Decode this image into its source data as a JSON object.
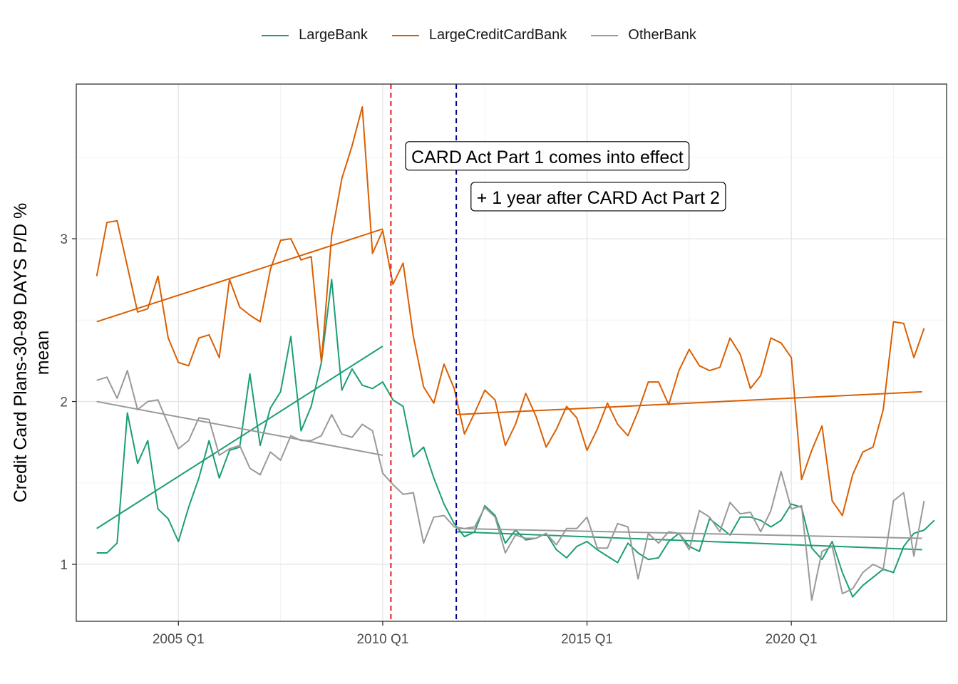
{
  "chart_data": {
    "type": "line",
    "ylabel": "Credit Card Plans-30-89 DAYS P/D %\nmean",
    "ylabel_line1": "Credit Card Plans-30-89 DAYS P/D %",
    "ylabel_line2": "mean",
    "xlabel": "",
    "x_ticks": [
      "2005 Q1",
      "2010 Q1",
      "2015 Q1",
      "2020 Q1"
    ],
    "y_ticks": [
      1,
      2,
      3
    ],
    "xlim": [
      2002.5,
      2023.8
    ],
    "ylim": [
      0.65,
      3.95
    ],
    "grid": true,
    "legend_position": "top",
    "vlines": [
      {
        "x": 2010.2,
        "color": "#e41a1c",
        "style": "dashed"
      },
      {
        "x": 2011.8,
        "color": "#00008b",
        "style": "dashed"
      }
    ],
    "annotations": [
      {
        "text": "CARD Act Part 1 comes into effect",
        "x": 2010.7,
        "y": 3.5
      },
      {
        "text": "+ 1 year after CARD Act Part 2",
        "x": 2012.3,
        "y": 3.25
      }
    ],
    "series": [
      {
        "name": "LargeBank",
        "color": "#1b9e77",
        "x_start": 2003.0,
        "step": 0.25,
        "values": [
          1.07,
          1.07,
          1.13,
          1.93,
          1.62,
          1.76,
          1.34,
          1.28,
          1.14,
          1.35,
          1.53,
          1.76,
          1.53,
          1.7,
          1.72,
          2.17,
          1.73,
          1.96,
          2.06,
          2.4,
          1.82,
          1.97,
          2.24,
          2.75,
          2.07,
          2.2,
          2.1,
          2.08,
          2.12,
          2.01,
          1.97,
          1.66,
          1.72,
          1.53,
          1.37,
          1.25,
          1.17,
          1.2,
          1.36,
          1.3,
          1.13,
          1.21,
          1.15,
          1.16,
          1.19,
          1.09,
          1.04,
          1.11,
          1.14,
          1.09,
          1.05,
          1.01,
          1.13,
          1.07,
          1.03,
          1.04,
          1.14,
          1.19,
          1.11,
          1.08,
          1.28,
          1.23,
          1.18,
          1.29,
          1.29,
          1.27,
          1.23,
          1.27,
          1.37,
          1.35,
          1.1,
          1.03,
          1.14,
          0.95,
          0.8,
          0.87,
          0.92,
          0.97,
          0.95,
          1.11,
          1.19,
          1.21,
          1.27
        ],
        "trend": [
          {
            "x": [
              2003.0,
              2010.0
            ],
            "y": [
              1.22,
              2.34
            ]
          },
          {
            "x": [
              2011.8,
              2023.2
            ],
            "y": [
              1.2,
              1.09
            ]
          }
        ]
      },
      {
        "name": "LargeCreditCardBank",
        "color": "#d95f02",
        "x_start": 2003.0,
        "step": 0.25,
        "values": [
          2.77,
          3.1,
          3.11,
          2.83,
          2.55,
          2.57,
          2.77,
          2.39,
          2.24,
          2.22,
          2.39,
          2.41,
          2.27,
          2.75,
          2.58,
          2.53,
          2.49,
          2.81,
          2.99,
          3.0,
          2.87,
          2.89,
          2.24,
          3.02,
          3.37,
          3.57,
          3.81,
          2.91,
          3.05,
          2.72,
          2.85,
          2.4,
          2.09,
          1.99,
          2.23,
          2.08,
          1.8,
          1.93,
          2.07,
          2.01,
          1.73,
          1.86,
          2.05,
          1.91,
          1.72,
          1.83,
          1.97,
          1.9,
          1.7,
          1.83,
          1.99,
          1.86,
          1.79,
          1.94,
          2.12,
          2.12,
          1.98,
          2.19,
          2.32,
          2.22,
          2.19,
          2.21,
          2.39,
          2.29,
          2.08,
          2.16,
          2.39,
          2.36,
          2.27,
          1.52,
          1.7,
          1.85,
          1.39,
          1.3,
          1.55,
          1.69,
          1.72,
          1.95,
          2.49,
          2.48,
          2.27,
          2.45
        ],
        "trend": [
          {
            "x": [
              2003.0,
              2010.0
            ],
            "y": [
              2.49,
              3.06
            ]
          },
          {
            "x": [
              2011.8,
              2023.2
            ],
            "y": [
              1.92,
              2.06
            ]
          }
        ]
      },
      {
        "name": "OtherBank",
        "color": "#999999",
        "x_start": 2003.0,
        "step": 0.25,
        "values": [
          2.13,
          2.15,
          2.02,
          2.19,
          1.95,
          2.0,
          2.01,
          1.86,
          1.71,
          1.76,
          1.9,
          1.89,
          1.67,
          1.71,
          1.73,
          1.59,
          1.55,
          1.69,
          1.64,
          1.79,
          1.76,
          1.76,
          1.79,
          1.92,
          1.8,
          1.78,
          1.86,
          1.82,
          1.56,
          1.49,
          1.43,
          1.44,
          1.13,
          1.29,
          1.3,
          1.23,
          1.22,
          1.23,
          1.35,
          1.29,
          1.07,
          1.18,
          1.16,
          1.16,
          1.19,
          1.12,
          1.22,
          1.22,
          1.29,
          1.1,
          1.1,
          1.25,
          1.23,
          0.91,
          1.19,
          1.13,
          1.2,
          1.19,
          1.09,
          1.33,
          1.29,
          1.2,
          1.38,
          1.31,
          1.32,
          1.2,
          1.33,
          1.57,
          1.34,
          1.36,
          0.78,
          1.08,
          1.11,
          0.82,
          0.85,
          0.95,
          1.0,
          0.97,
          1.39,
          1.44,
          1.05,
          1.39
        ],
        "trend": [
          {
            "x": [
              2003.0,
              2010.0
            ],
            "y": [
              2.0,
              1.67
            ]
          },
          {
            "x": [
              2011.8,
              2023.2
            ],
            "y": [
              1.22,
              1.16
            ]
          }
        ]
      }
    ]
  }
}
